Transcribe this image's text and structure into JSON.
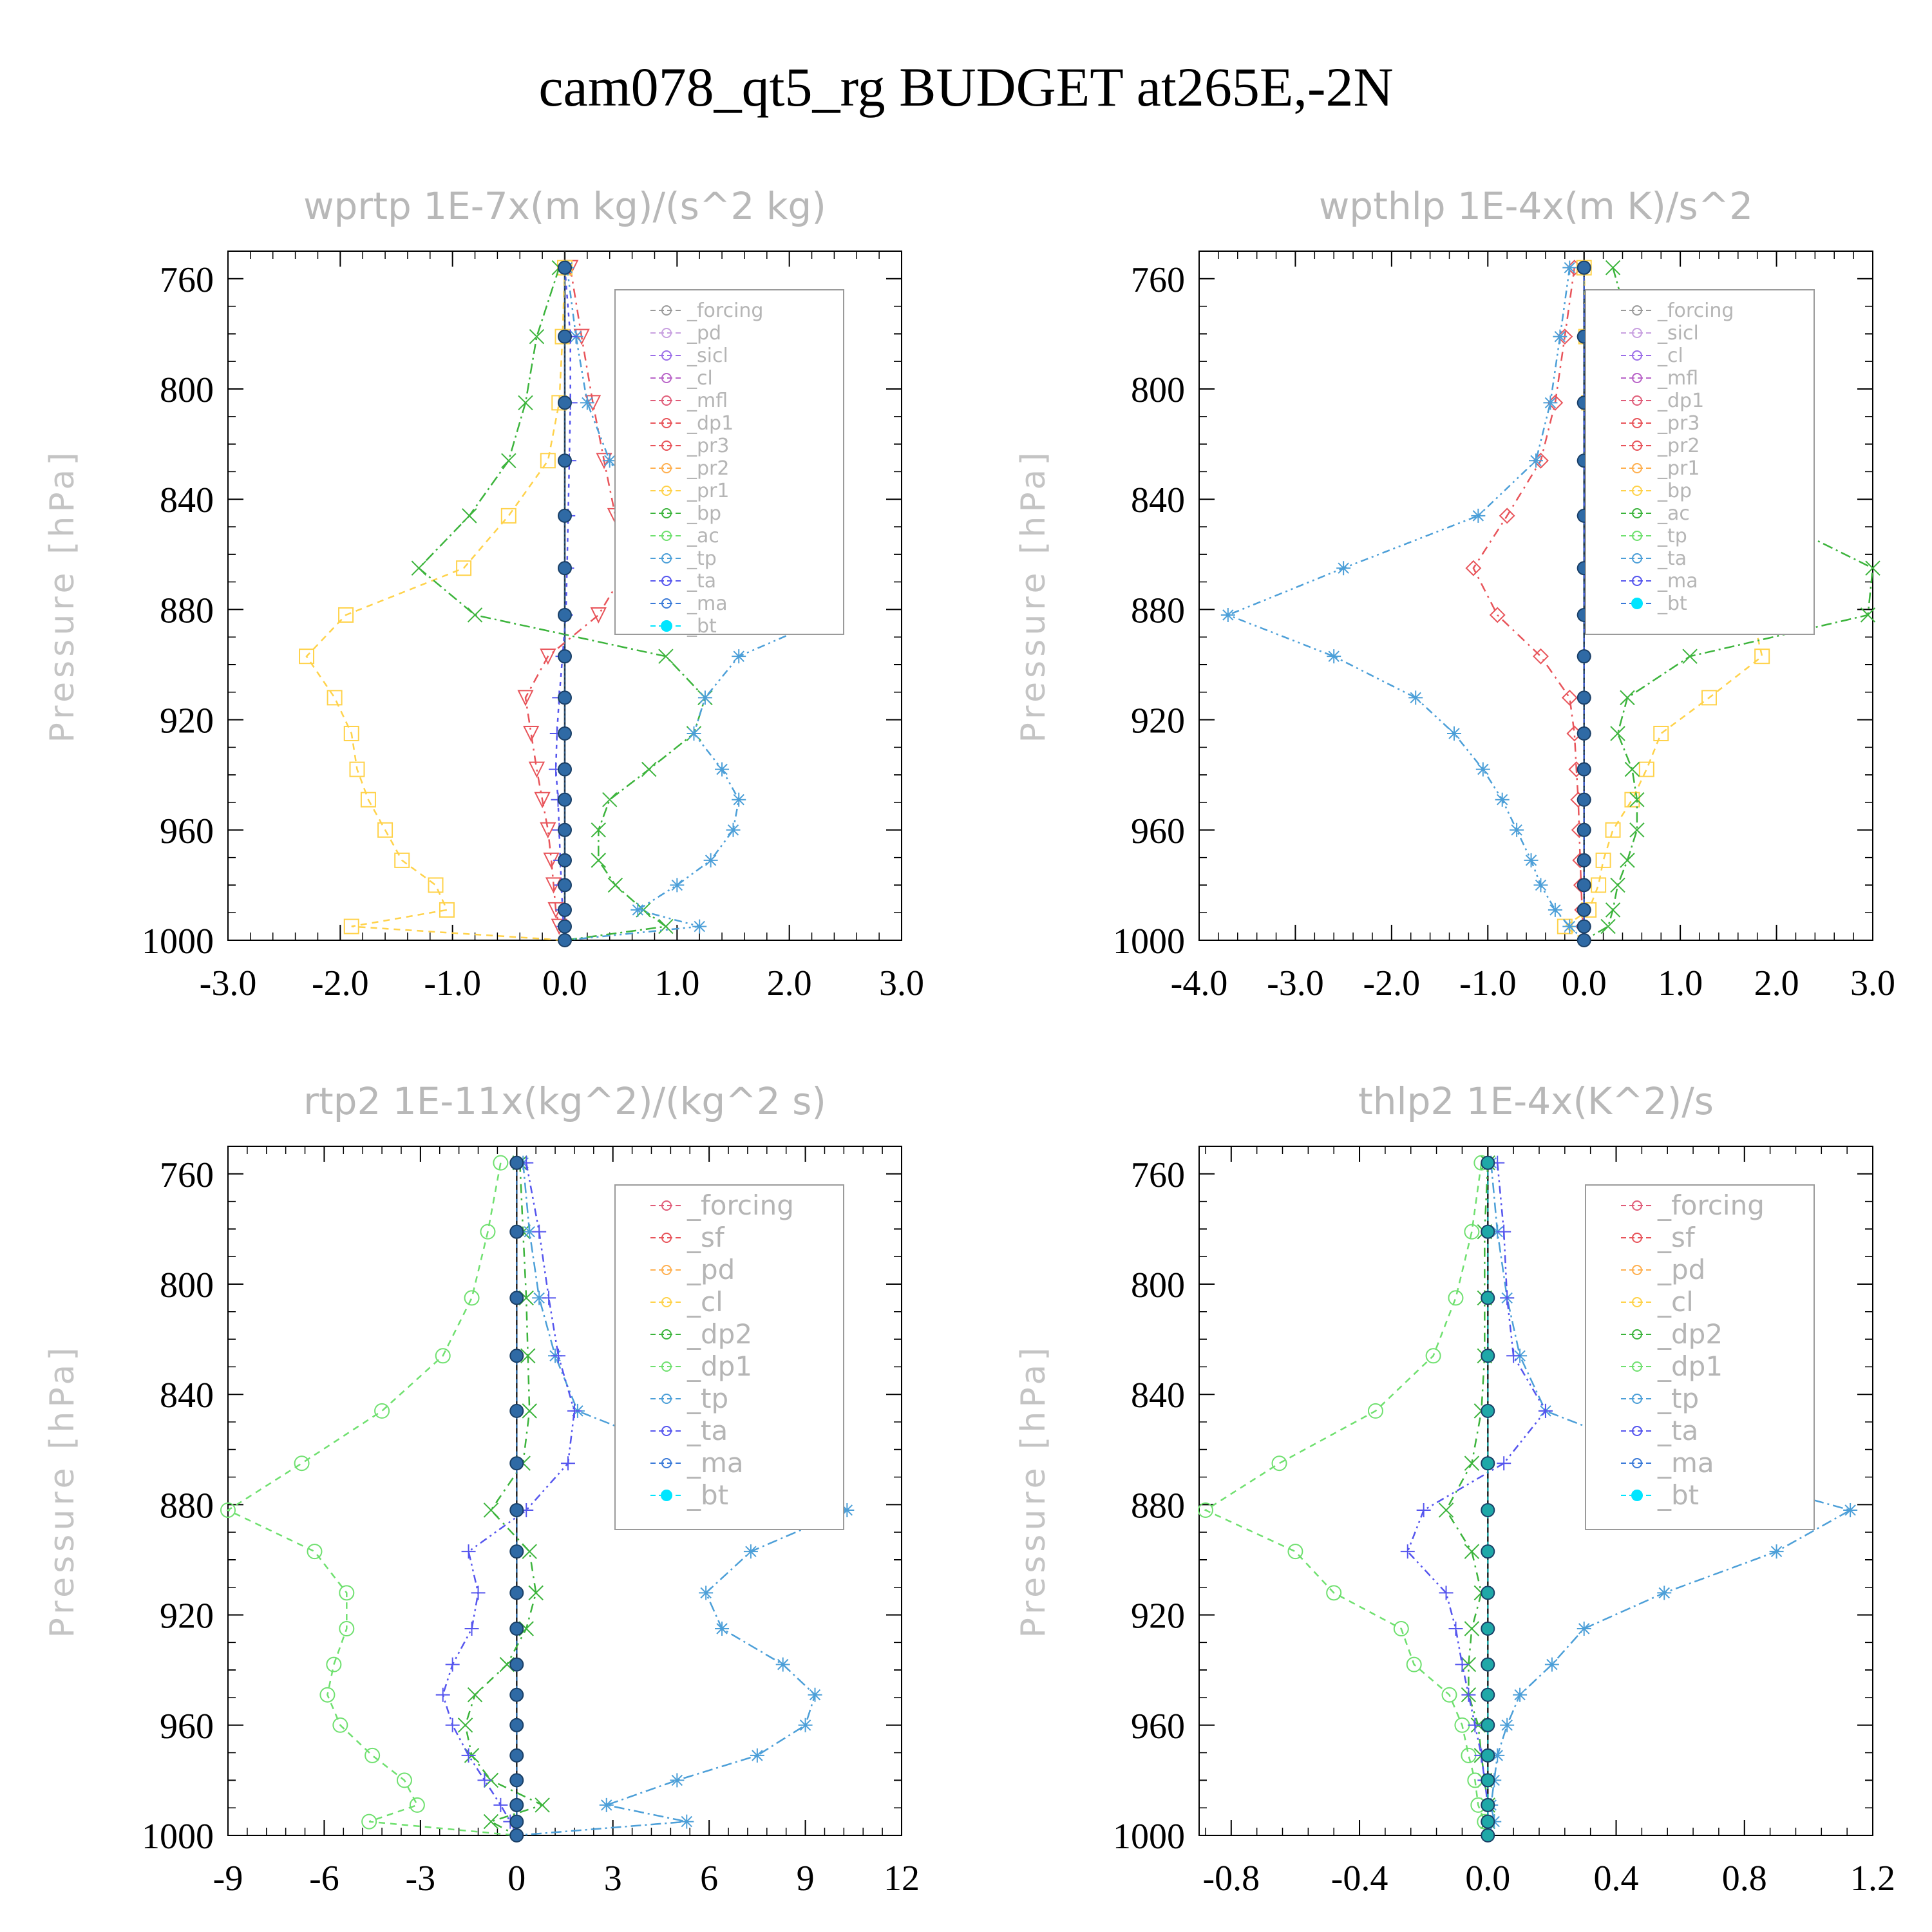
{
  "title": "cam078_qt5_rg  BUDGET at265E,-2N",
  "chart_data": [
    {
      "type": "line",
      "title": "wprtp  1E-7x(m kg)/(s^2 kg)",
      "ylabel": "Pressure [hPa]",
      "xlim": [
        -3.0,
        3.0
      ],
      "ylim": [
        1000,
        750
      ],
      "xticks": [
        "-3.0",
        "-2.0",
        "-1.0",
        "0.0",
        "1.0",
        "2.0",
        "3.0"
      ],
      "yticks": [
        "760",
        "800",
        "840",
        "880",
        "920",
        "960",
        "1000"
      ],
      "legend": [
        "_forcing",
        "_pd",
        "_sicl",
        "_cl",
        "_mfl",
        "_dp1",
        "_pr3",
        "_pr2",
        "_pr1",
        "_bp",
        "_ac",
        "_tp",
        "_ta",
        "_ma",
        "_bt"
      ],
      "y": [
        756,
        781,
        805,
        826,
        846,
        865,
        882,
        897,
        912,
        925,
        938,
        949,
        960,
        971,
        980,
        989,
        995,
        1000
      ],
      "series": [
        {
          "name": "_pr3",
          "color": "#e8545a",
          "marker": "tri-down",
          "values": [
            0.05,
            0.15,
            0.25,
            0.35,
            0.45,
            0.55,
            0.3,
            -0.15,
            -0.35,
            -0.3,
            -0.25,
            -0.2,
            -0.15,
            -0.12,
            -0.1,
            -0.08,
            -0.05,
            0
          ]
        },
        {
          "name": "_pr1",
          "color": "#ffd24a",
          "marker": "square",
          "values": [
            0,
            -0.02,
            -0.05,
            -0.15,
            -0.5,
            -0.9,
            -1.95,
            -2.3,
            -2.05,
            -1.9,
            -1.85,
            -1.75,
            -1.6,
            -1.45,
            -1.15,
            -1.05,
            -1.9,
            0
          ]
        },
        {
          "name": "_bp",
          "color": "#3cb43c",
          "marker": "x",
          "values": [
            -0.05,
            -0.25,
            -0.35,
            -0.5,
            -0.85,
            -1.3,
            -0.8,
            0.9,
            1.25,
            1.15,
            0.75,
            0.4,
            0.3,
            0.3,
            0.45,
            0.7,
            0.9,
            0
          ]
        },
        {
          "name": "_tp",
          "color": "#4c9fd8",
          "marker": "star",
          "values": [
            0.02,
            0.1,
            0.2,
            0.4,
            0.7,
            1.3,
            2.4,
            1.55,
            1.25,
            1.15,
            1.4,
            1.55,
            1.5,
            1.3,
            1.0,
            0.65,
            1.2,
            0
          ]
        },
        {
          "name": "_ta",
          "color": "#5555ee",
          "marker": "plus",
          "values": [
            0,
            0.05,
            0.05,
            0.04,
            0.03,
            0.02,
            0.01,
            -0.02,
            -0.05,
            -0.07,
            -0.08,
            -0.06,
            -0.05,
            -0.04,
            -0.03,
            -0.02,
            -0.01,
            0
          ]
        },
        {
          "name": "_bt",
          "color": "#2f6aa5",
          "marker": "dot",
          "values": [
            0,
            0,
            0,
            0,
            0,
            0,
            0,
            0,
            0,
            0,
            0,
            0,
            0,
            0,
            0,
            0,
            0,
            0
          ]
        }
      ]
    },
    {
      "type": "line",
      "title": "wpthlp  1E-4x(m K)/s^2",
      "ylabel": "Pressure [hPa]",
      "xlim": [
        -4.0,
        3.0
      ],
      "ylim": [
        1000,
        750
      ],
      "xticks": [
        "-4.0",
        "-3.0",
        "-2.0",
        "-1.0",
        "0.0",
        "1.0",
        "2.0",
        "3.0"
      ],
      "yticks": [
        "760",
        "800",
        "840",
        "880",
        "920",
        "960",
        "1000"
      ],
      "legend": [
        "_forcing",
        "_sicl",
        "_cl",
        "_mfl",
        "_dp1",
        "_pr3",
        "_pr2",
        "_pr1",
        "_bp",
        "_ac",
        "_tp",
        "_ta",
        "_ma",
        "_bt"
      ],
      "y": [
        756,
        781,
        805,
        826,
        846,
        865,
        882,
        897,
        912,
        925,
        938,
        949,
        960,
        971,
        980,
        989,
        995,
        1000
      ],
      "series": [
        {
          "name": "_pr3",
          "color": "#e8545a",
          "marker": "diamond",
          "values": [
            -0.1,
            -0.2,
            -0.3,
            -0.45,
            -0.8,
            -1.15,
            -0.9,
            -0.45,
            -0.15,
            -0.1,
            -0.08,
            -0.06,
            -0.05,
            -0.04,
            -0.03,
            -0.02,
            -0.01,
            0
          ]
        },
        {
          "name": "_pr1",
          "color": "#ffd24a",
          "marker": "square",
          "values": [
            0,
            0.02,
            0.05,
            0.08,
            0.15,
            0.5,
            1.75,
            1.85,
            1.3,
            0.8,
            0.65,
            0.5,
            0.3,
            0.2,
            0.15,
            0.05,
            -0.2,
            0
          ]
        },
        {
          "name": "_bp",
          "color": "#3cb43c",
          "marker": "x",
          "values": [
            0.3,
            0.5,
            0.9,
            1.4,
            1.9,
            3.0,
            2.95,
            1.1,
            0.45,
            0.35,
            0.5,
            0.55,
            0.55,
            0.45,
            0.35,
            0.3,
            0.25,
            0
          ]
        },
        {
          "name": "_tp",
          "color": "#4c9fd8",
          "marker": "star",
          "values": [
            -0.15,
            -0.25,
            -0.35,
            -0.5,
            -1.1,
            -2.5,
            -3.7,
            -2.6,
            -1.75,
            -1.35,
            -1.05,
            -0.85,
            -0.7,
            -0.55,
            -0.45,
            -0.3,
            -0.15,
            0
          ]
        },
        {
          "name": "_ta",
          "color": "#5555ee",
          "marker": "plus",
          "values": [
            0,
            0,
            0,
            0,
            0,
            0,
            0,
            0,
            0,
            0,
            0,
            0,
            0,
            0,
            0,
            0,
            0,
            0
          ]
        },
        {
          "name": "_bt",
          "color": "#2f6aa5",
          "marker": "dot",
          "values": [
            0,
            0,
            0,
            0,
            0,
            0,
            0,
            0,
            0,
            0,
            0,
            0,
            0,
            0,
            0,
            0,
            0,
            0
          ]
        }
      ]
    },
    {
      "type": "line",
      "title": "rtp2  1E-11x(kg^2)/(kg^2 s)",
      "ylabel": "Pressure [hPa]",
      "xlim": [
        -9,
        12
      ],
      "ylim": [
        1000,
        750
      ],
      "xticks": [
        "-9",
        "-6",
        "-3",
        "0",
        "3",
        "6",
        "9",
        "12"
      ],
      "yticks": [
        "760",
        "800",
        "840",
        "880",
        "920",
        "960",
        "1000"
      ],
      "legend": [
        "_forcing",
        "_sf",
        "_pd",
        "_cl",
        "_dp2",
        "_dp1",
        "_tp",
        "_ta",
        "_ma",
        "_bt"
      ],
      "y": [
        756,
        781,
        805,
        826,
        846,
        865,
        882,
        897,
        912,
        925,
        938,
        949,
        960,
        971,
        980,
        989,
        995,
        1000
      ],
      "series": [
        {
          "name": "_dp2",
          "color": "#3cb43c",
          "marker": "x",
          "values": [
            0.1,
            0.2,
            0.3,
            0.35,
            0.4,
            0.2,
            -0.8,
            0.4,
            0.6,
            0.3,
            -0.3,
            -1.3,
            -1.6,
            -1.4,
            -0.8,
            0.8,
            -0.8,
            0
          ]
        },
        {
          "name": "_dp1",
          "color": "#6fe06f",
          "marker": "circle",
          "values": [
            -0.5,
            -0.9,
            -1.4,
            -2.3,
            -4.2,
            -6.7,
            -9.0,
            -6.3,
            -5.3,
            -5.3,
            -5.7,
            -5.9,
            -5.5,
            -4.5,
            -3.5,
            -3.1,
            -4.6,
            0
          ]
        },
        {
          "name": "_tp",
          "color": "#4c9fd8",
          "marker": "star",
          "values": [
            0.2,
            0.4,
            0.7,
            1.2,
            1.9,
            6.0,
            10.3,
            7.3,
            5.9,
            6.4,
            8.3,
            9.3,
            9.0,
            7.5,
            5.0,
            2.8,
            5.3,
            0
          ]
        },
        {
          "name": "_ta",
          "color": "#5555ee",
          "marker": "plus",
          "values": [
            0.3,
            0.7,
            1.0,
            1.3,
            1.8,
            1.6,
            0.3,
            -1.5,
            -1.2,
            -1.4,
            -2.0,
            -2.3,
            -2.0,
            -1.5,
            -1.0,
            -0.5,
            -0.2,
            0
          ]
        },
        {
          "name": "_bt",
          "color": "#2f6aa5",
          "marker": "dot",
          "values": [
            0,
            0,
            0,
            0,
            0,
            0,
            0,
            0,
            0,
            0,
            0,
            0,
            0,
            0,
            0,
            0,
            0,
            0
          ]
        }
      ]
    },
    {
      "type": "line",
      "title": "thlp2  1E-4x(K^2)/s",
      "ylabel": "Pressure [hPa]",
      "xlim": [
        -0.9,
        1.2
      ],
      "ylim": [
        1000,
        750
      ],
      "xticks": [
        "-0.8",
        "-0.4",
        "0.0",
        "0.4",
        "0.8",
        "1.2"
      ],
      "yticks": [
        "760",
        "800",
        "840",
        "880",
        "920",
        "960",
        "1000"
      ],
      "legend": [
        "_forcing",
        "_sf",
        "_pd",
        "_cl",
        "_dp2",
        "_dp1",
        "_tp",
        "_ta",
        "_ma",
        "_bt"
      ],
      "y": [
        756,
        781,
        805,
        826,
        846,
        865,
        882,
        897,
        912,
        925,
        938,
        949,
        960,
        971,
        980,
        989,
        995,
        1000
      ],
      "series": [
        {
          "name": "_dp2",
          "color": "#3cb43c",
          "marker": "x",
          "values": [
            0,
            -0.01,
            -0.01,
            -0.01,
            -0.02,
            -0.05,
            -0.13,
            -0.05,
            -0.02,
            -0.05,
            -0.06,
            -0.06,
            -0.03,
            -0.02,
            -0.01,
            0,
            0,
            0
          ]
        },
        {
          "name": "_dp1",
          "color": "#6fe06f",
          "marker": "circle",
          "values": [
            -0.02,
            -0.05,
            -0.1,
            -0.17,
            -0.35,
            -0.65,
            -0.88,
            -0.6,
            -0.48,
            -0.27,
            -0.23,
            -0.12,
            -0.08,
            -0.06,
            -0.04,
            -0.03,
            -0.01,
            0
          ]
        },
        {
          "name": "_tp",
          "color": "#4c9fd8",
          "marker": "star",
          "values": [
            0.01,
            0.03,
            0.06,
            0.1,
            0.18,
            0.6,
            1.13,
            0.9,
            0.55,
            0.3,
            0.2,
            0.1,
            0.06,
            0.03,
            0.02,
            0.01,
            0.02,
            0
          ]
        },
        {
          "name": "_ta",
          "color": "#5555ee",
          "marker": "plus",
          "values": [
            0.03,
            0.05,
            0.06,
            0.08,
            0.18,
            0.05,
            -0.2,
            -0.25,
            -0.13,
            -0.1,
            -0.08,
            -0.06,
            -0.04,
            -0.02,
            -0.01,
            0,
            0,
            0
          ]
        },
        {
          "name": "_bt",
          "color": "#1fa8a8",
          "marker": "dot",
          "values": [
            0,
            0,
            0,
            0,
            0,
            0,
            0,
            0,
            0,
            0,
            0,
            0,
            0,
            0,
            0,
            0,
            0,
            0
          ]
        }
      ]
    }
  ],
  "legend_marker_colors": [
    "#9a9a9a",
    "#c8a0e0",
    "#9b6ee8",
    "#b964c8",
    "#e05c78",
    "#e8545a",
    "#e8545a",
    "#ffb050",
    "#ffd24a",
    "#3cb43c",
    "#6fe06f",
    "#4c9fd8",
    "#5555ee",
    "#3a7ad8",
    "#00e5ff"
  ]
}
